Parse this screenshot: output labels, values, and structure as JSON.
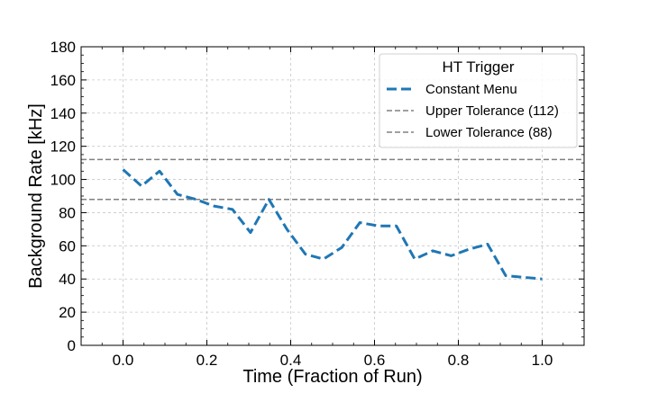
{
  "chart_data": {
    "type": "line",
    "xlabel": "Time (Fraction of Run)",
    "ylabel": "Background Rate [kHz]",
    "xlim": [
      -0.1,
      1.1
    ],
    "ylim": [
      0,
      180
    ],
    "xticks": [
      0.0,
      0.2,
      0.4,
      0.6,
      0.8,
      1.0
    ],
    "xtick_labels": [
      "0.0",
      "0.2",
      "0.4",
      "0.6",
      "0.8",
      "1.0"
    ],
    "yticks": [
      0,
      20,
      40,
      60,
      80,
      100,
      120,
      140,
      160,
      180
    ],
    "ytick_labels": [
      "0",
      "20",
      "40",
      "60",
      "80",
      "100",
      "120",
      "140",
      "160",
      "180"
    ],
    "grid": true,
    "legend": {
      "title": "HT Trigger",
      "placement": "top-right"
    },
    "series": [
      {
        "name": "Constant Menu",
        "color": "#1f77b4",
        "style": "dashed",
        "x": [
          0.0,
          0.044,
          0.087,
          0.13,
          0.174,
          0.217,
          0.261,
          0.304,
          0.348,
          0.391,
          0.435,
          0.478,
          0.522,
          0.565,
          0.609,
          0.652,
          0.696,
          0.739,
          0.783,
          0.826,
          0.87,
          0.913,
          0.957,
          1.0
        ],
        "y": [
          106,
          96,
          105,
          91,
          88,
          84,
          82,
          68,
          88,
          70,
          55,
          52,
          59,
          74,
          72,
          72,
          52,
          57,
          54,
          58,
          61,
          42,
          41,
          40
        ]
      },
      {
        "name": "Upper Tolerance (112)",
        "color": "#808080",
        "style": "dashed",
        "hline": 112
      },
      {
        "name": "Lower Tolerance (88)",
        "color": "#808080",
        "style": "dashed",
        "hline": 88
      }
    ]
  }
}
